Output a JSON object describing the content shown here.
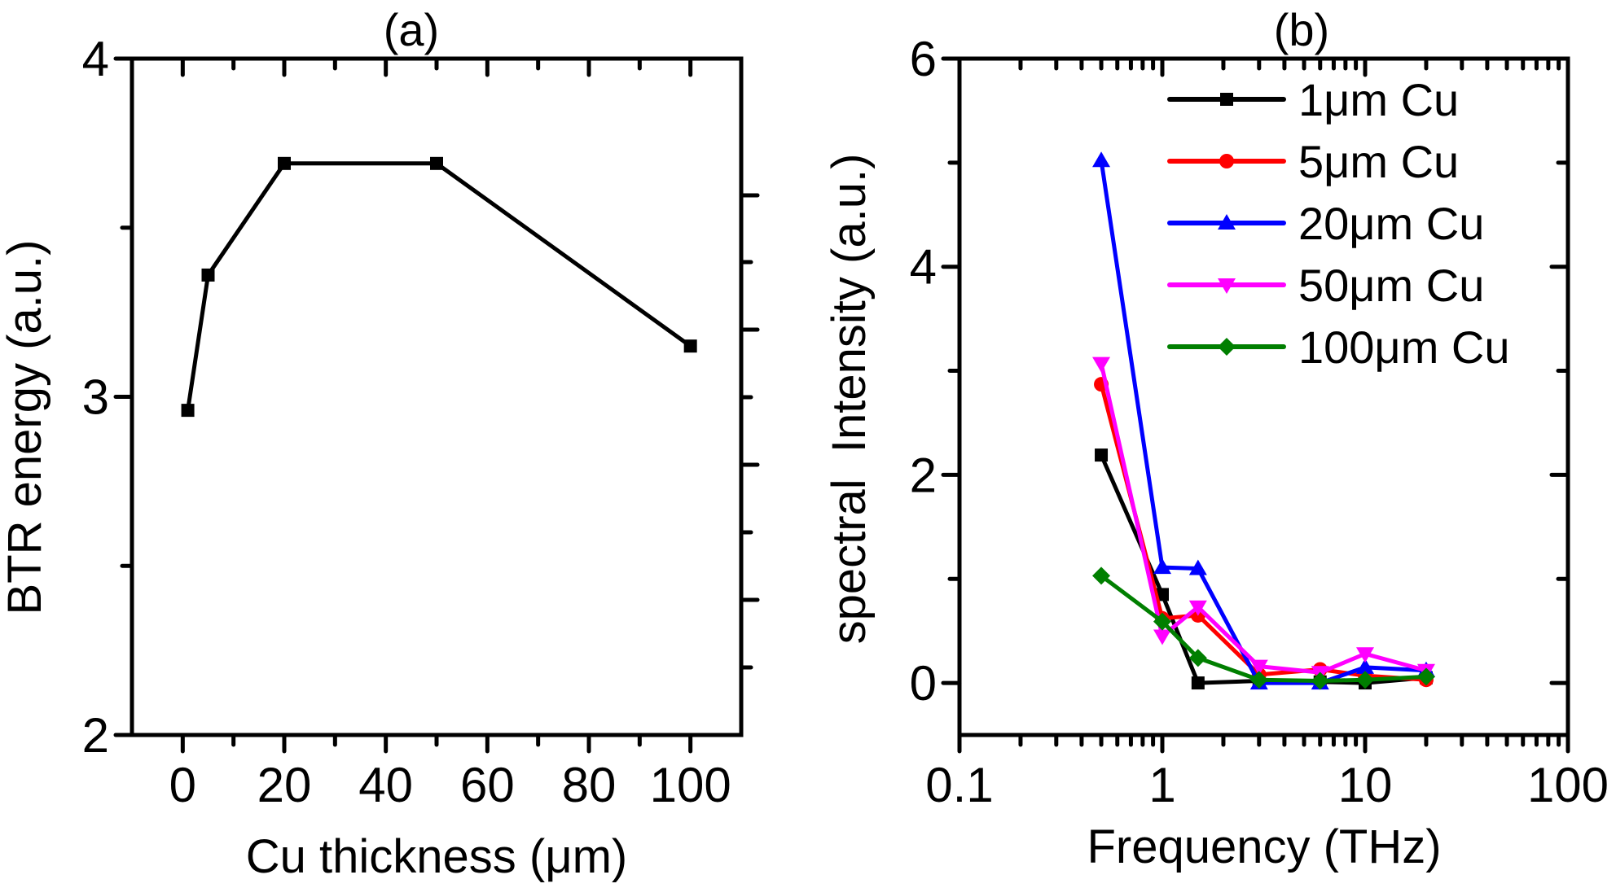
{
  "figure": {
    "panels": [
      "(a)",
      "(b)"
    ]
  },
  "chart_data": [
    {
      "type": "line",
      "title": "(a)",
      "xlabel": "Cu thickness (μm)",
      "ylabel": "BTR energy (a.u.)",
      "xlim": [
        -10,
        110
      ],
      "ylim": [
        2,
        4
      ],
      "x_ticks": [
        0,
        20,
        40,
        60,
        80,
        100
      ],
      "x_tick_labels": [
        "0",
        "20",
        "40",
        "60",
        "80",
        "100"
      ],
      "y_ticks": [
        2,
        3,
        4
      ],
      "y_tick_labels": [
        "2",
        "3",
        "4"
      ],
      "grid": false,
      "series": [
        {
          "name": "BTR energy",
          "color": "#000000",
          "marker": "square",
          "x": [
            1,
            5,
            20,
            50,
            100
          ],
          "y": [
            2.96,
            3.36,
            3.69,
            3.69,
            3.15
          ]
        }
      ]
    },
    {
      "type": "line",
      "title": "(b)",
      "xlabel": "Frequency (THz)",
      "ylabel": "spectral  Intensity (a.u.)",
      "xscale": "log",
      "xlim": [
        0.1,
        100
      ],
      "ylim": [
        -0.5,
        6
      ],
      "x_ticks": [
        0.1,
        1,
        10,
        100
      ],
      "x_tick_labels": [
        "0.1",
        "1",
        "10",
        "100"
      ],
      "y_ticks": [
        0,
        2,
        4,
        6
      ],
      "y_tick_labels": [
        "0",
        "2",
        "4",
        "6"
      ],
      "grid": false,
      "legend_position": "top-right",
      "x": [
        0.5,
        1,
        1.5,
        3,
        6,
        10,
        20
      ],
      "series": [
        {
          "name": "1μm Cu",
          "color": "#000000",
          "marker": "square",
          "values": [
            2.19,
            0.85,
            0.0,
            0.02,
            0.01,
            0.0,
            0.05
          ]
        },
        {
          "name": "5μm Cu",
          "color": "#ff0000",
          "marker": "circle",
          "values": [
            2.87,
            0.62,
            0.65,
            0.08,
            0.13,
            0.07,
            0.03
          ]
        },
        {
          "name": "20μm Cu",
          "color": "#0000ff",
          "marker": "triangle-up",
          "values": [
            5.02,
            1.11,
            1.1,
            0.0,
            0.0,
            0.15,
            0.12
          ]
        },
        {
          "name": "50μm Cu",
          "color": "#ff00ff",
          "marker": "triangle-down",
          "values": [
            3.07,
            0.45,
            0.73,
            0.16,
            0.1,
            0.28,
            0.12
          ]
        },
        {
          "name": "100μm Cu",
          "color": "#007f00",
          "marker": "diamond",
          "values": [
            1.03,
            0.59,
            0.24,
            0.03,
            0.02,
            0.03,
            0.06
          ]
        }
      ]
    }
  ]
}
